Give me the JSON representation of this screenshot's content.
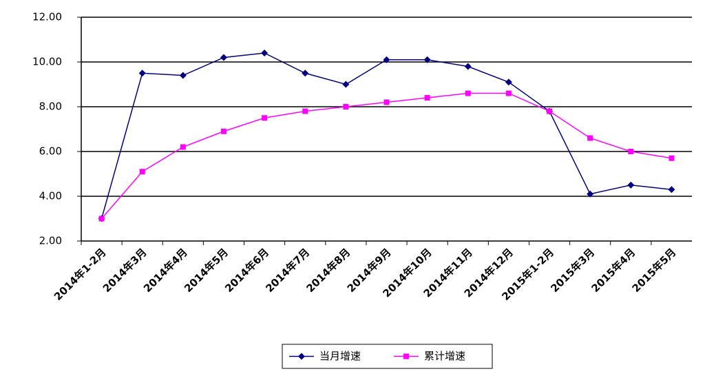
{
  "chart_data": {
    "type": "line",
    "categories": [
      "2014年1-2月",
      "2014年3月",
      "2014年4月",
      "2014年5月",
      "2014年6月",
      "2014年7月",
      "2014年8月",
      "2014年9月",
      "2014年10月",
      "2014年11月",
      "2014年12月",
      "2015年1-2月",
      "2015年3月",
      "2015年4月",
      "2015年5月"
    ],
    "series": [
      {
        "name": "当月增速",
        "color": "#000080",
        "marker": "diamond",
        "values": [
          3.0,
          9.5,
          9.4,
          10.2,
          10.4,
          9.5,
          9.0,
          10.1,
          10.1,
          9.8,
          9.1,
          7.8,
          4.1,
          4.5,
          4.3
        ]
      },
      {
        "name": "累计增速",
        "color": "#ff00ff",
        "marker": "square",
        "values": [
          3.0,
          5.1,
          6.2,
          6.9,
          7.5,
          7.8,
          8.0,
          8.2,
          8.4,
          8.6,
          8.6,
          7.8,
          6.6,
          6.0,
          5.7
        ]
      }
    ],
    "ylim": [
      2,
      12
    ],
    "yticks": [
      {
        "value": 2,
        "label": "2.00"
      },
      {
        "value": 4,
        "label": "4.00"
      },
      {
        "value": 6,
        "label": "6.00"
      },
      {
        "value": 8,
        "label": "8.00"
      },
      {
        "value": 10,
        "label": "10.00"
      },
      {
        "value": 12,
        "label": "12.00"
      }
    ],
    "grid": true,
    "legend": "bottom"
  }
}
